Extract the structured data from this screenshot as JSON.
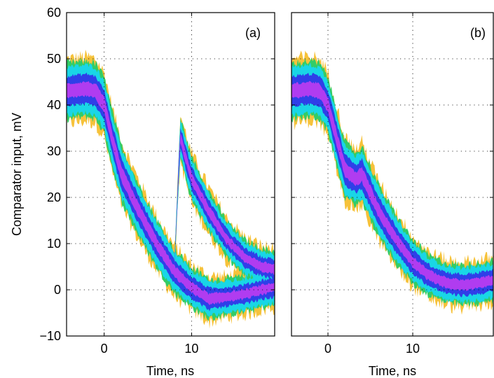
{
  "chart_data": [
    {
      "type": "area",
      "panel_label": "(a)",
      "xlabel": "Time, ns",
      "ylabel": "Comparator input, mV",
      "xlim": [
        -4.3,
        19.5
      ],
      "ylim": [
        -10,
        60
      ],
      "xticks": [
        0,
        10
      ],
      "yticks": [
        -10,
        0,
        10,
        20,
        30,
        40,
        50,
        60
      ],
      "xtick_labels": [
        "0",
        "10"
      ],
      "ytick_labels": [
        "−10",
        "0",
        "10",
        "20",
        "30",
        "40",
        "50",
        "60"
      ],
      "grid": true,
      "colors": {
        "outer": "#f6c23a",
        "green": "#33cc66",
        "cyan": "#19d6e6",
        "blue": "#2f3fe8",
        "magenta": "#b03cf0"
      },
      "series": [
        {
          "x": [
            -4.3,
            -2,
            -1,
            0,
            1,
            2,
            4,
            6,
            8,
            10,
            12,
            14,
            16,
            18,
            19.5
          ],
          "values": [
            43,
            43.5,
            43,
            40,
            32,
            25,
            17,
            10,
            4,
            0.5,
            -2,
            -1.5,
            -1,
            0,
            0.5
          ],
          "band_half_width": [
            7,
            7,
            7,
            7,
            7,
            7,
            6.5,
            6,
            5.5,
            5,
            5,
            4.5,
            4.5,
            4.5,
            4.5
          ]
        },
        {
          "x": [
            8,
            8.7,
            10,
            12,
            14,
            16,
            18,
            19.5
          ],
          "values": [
            4,
            33,
            24,
            17,
            11,
            7,
            5,
            4.5
          ],
          "band_half_width": [
            0.5,
            5,
            5.5,
            5,
            4.5,
            4.5,
            4.5,
            4.5
          ]
        }
      ]
    },
    {
      "type": "area",
      "panel_label": "(b)",
      "xlabel": "Time, ns",
      "ylabel": "",
      "xlim": [
        -4.3,
        19.5
      ],
      "ylim": [
        -10,
        60
      ],
      "xticks": [
        0,
        10
      ],
      "yticks": [
        -10,
        0,
        10,
        20,
        30,
        40,
        50,
        60
      ],
      "xtick_labels": [
        "0",
        "10"
      ],
      "ytick_labels": [],
      "grid": true,
      "colors": {
        "outer": "#f6c23a",
        "green": "#33cc66",
        "cyan": "#19d6e6",
        "blue": "#2f3fe8",
        "magenta": "#b03cf0"
      },
      "series": [
        {
          "x": [
            -4.3,
            -2,
            -1,
            0,
            1,
            2,
            3.3,
            4,
            6,
            8,
            10,
            12,
            14,
            16,
            18,
            19.5
          ],
          "values": [
            43,
            43.5,
            43,
            40,
            33,
            26,
            24,
            25,
            17,
            11,
            6,
            3,
            1.5,
            1,
            1.5,
            2
          ],
          "band_half_width": [
            7,
            7,
            7,
            7,
            7,
            7,
            6.5,
            7,
            6.5,
            6,
            5.5,
            5,
            5,
            5,
            5,
            5
          ]
        }
      ]
    }
  ]
}
